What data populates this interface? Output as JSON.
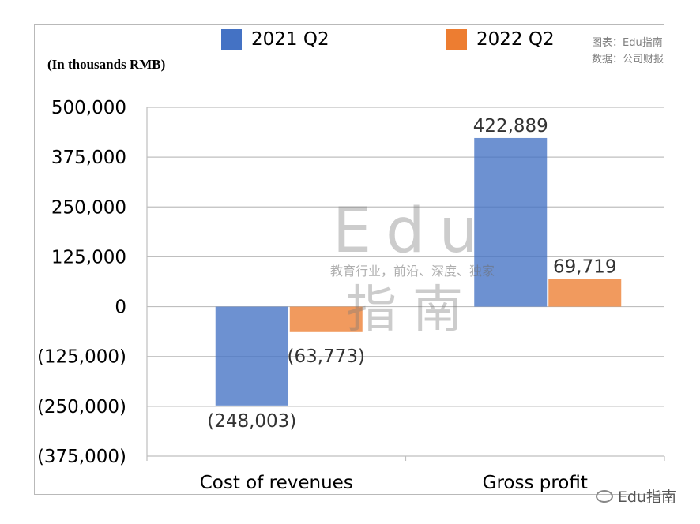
{
  "chart_data": {
    "type": "bar",
    "unit_label": "(In thousands RMB)",
    "categories": [
      "Cost of revenues",
      "Gross profit"
    ],
    "series": [
      {
        "name": "2021 Q2",
        "color": "#4472c4",
        "values": [
          -248003,
          422889
        ],
        "labels": [
          "(248,003)",
          "422,889"
        ]
      },
      {
        "name": "2022 Q2",
        "color": "#ed7d31",
        "values": [
          -63773,
          69719
        ],
        "labels": [
          "(63,773)",
          "69,719"
        ]
      }
    ],
    "ylim": [
      -375000,
      500000
    ],
    "yticks": [
      500000,
      375000,
      250000,
      125000,
      0,
      -125000,
      -250000,
      -375000
    ],
    "ytick_labels": [
      "500,000",
      "375,000",
      "250,000",
      "125,000",
      "0",
      "(125,000)",
      "(250,000)",
      "(375,000)"
    ],
    "grid": true,
    "legend_position": "top"
  },
  "source": {
    "line1": "图表：Edu指南",
    "line2": "数据：公司财报"
  },
  "watermark": {
    "big": "Edu",
    "small": "教育行业，前沿、深度、独家",
    "cn": "指南"
  },
  "wechat_label": "Edu指南"
}
